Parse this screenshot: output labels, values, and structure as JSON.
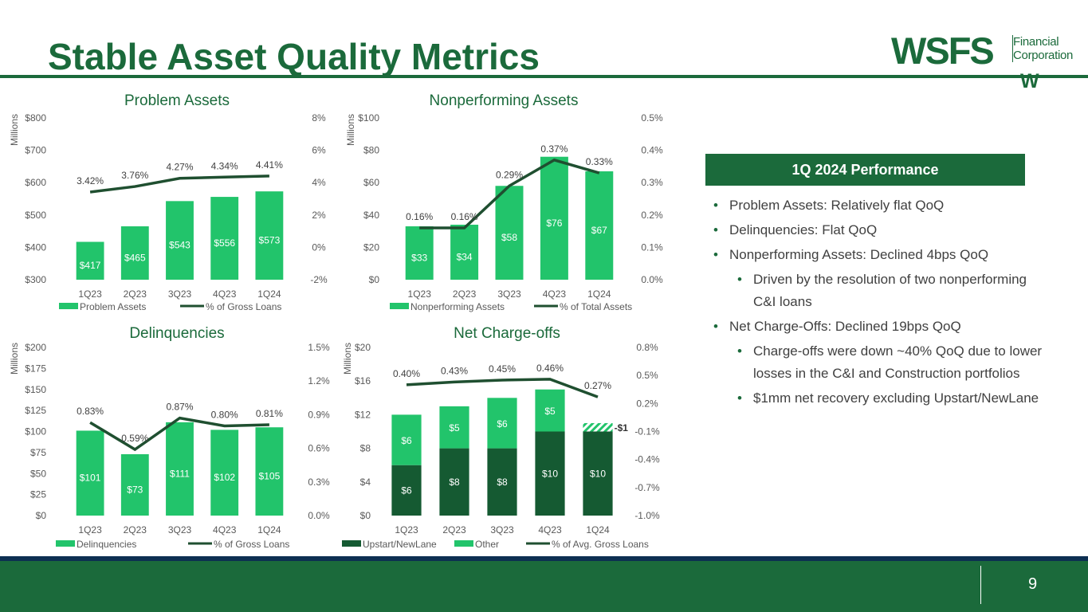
{
  "page": {
    "title": "Stable Asset Quality Metrics",
    "page_number": "9"
  },
  "logo": {
    "main": "WSFS",
    "line1": "Financial",
    "line2": "Corporation",
    "mark": "W"
  },
  "performance": {
    "header": "1Q 2024 Performance",
    "bullets": [
      {
        "text": "Problem Assets: Relatively flat QoQ",
        "level": 1
      },
      {
        "text": "Delinquencies:  Flat QoQ",
        "level": 1
      },
      {
        "text": "Nonperforming Assets: Declined 4bps QoQ",
        "level": 1
      },
      {
        "text": "Driven by the resolution of two nonperforming C&I loans",
        "level": 2
      },
      {
        "text": "Net Charge-Offs: Declined 19bps QoQ",
        "level": 1
      },
      {
        "text": "Charge-offs were down ~40% QoQ due to lower losses in the C&I and Construction portfolios",
        "level": 2
      },
      {
        "text": "$1mm net recovery excluding Upstart/NewLane",
        "level": 2
      }
    ]
  },
  "colors": {
    "brand_green": "#1b6a3b",
    "bar_green": "#22c46b",
    "dark_green": "#155a32",
    "line": "#1f4f30",
    "axis_text": "#595959",
    "footer_blue": "#0d2f52"
  },
  "chart_data": [
    {
      "type": "bar",
      "title": "Problem Assets",
      "ylabel": "Millions",
      "categories": [
        "1Q23",
        "2Q23",
        "3Q23",
        "4Q23",
        "1Q24"
      ],
      "series": [
        {
          "name": "Problem Assets",
          "type": "bar",
          "values": [
            417,
            465,
            543,
            556,
            573
          ],
          "labels": [
            "$417",
            "$465",
            "$543",
            "$556",
            "$573"
          ]
        },
        {
          "name": "% of Gross Loans",
          "type": "line",
          "axis": "right",
          "values": [
            3.42,
            3.76,
            4.27,
            4.34,
            4.41
          ],
          "labels": [
            "3.42%",
            "3.76%",
            "4.27%",
            "4.34%",
            "4.41%"
          ]
        }
      ],
      "ylim": [
        300,
        800
      ],
      "yticks": [
        "$300",
        "$400",
        "$500",
        "$600",
        "$700",
        "$800"
      ],
      "y2lim": [
        -2,
        8
      ],
      "y2ticks": [
        "-2%",
        "0%",
        "2%",
        "4%",
        "6%",
        "8%"
      ],
      "legend": "bottom"
    },
    {
      "type": "bar",
      "title": "Nonperforming  Assets",
      "ylabel": "Millions",
      "categories": [
        "1Q23",
        "2Q23",
        "3Q23",
        "4Q23",
        "1Q24"
      ],
      "series": [
        {
          "name": "Nonperforming Assets",
          "type": "bar",
          "values": [
            33,
            34,
            58,
            76,
            67
          ],
          "labels": [
            "$33",
            "$34",
            "$58",
            "$76",
            "$67"
          ]
        },
        {
          "name": "% of Total Assets",
          "type": "line",
          "axis": "right",
          "values": [
            0.16,
            0.16,
            0.29,
            0.37,
            0.33
          ],
          "labels": [
            "0.16%",
            "0.16%",
            "0.29%",
            "0.37%",
            "0.33%"
          ]
        }
      ],
      "ylim": [
        0,
        100
      ],
      "yticks": [
        "$0",
        "$20",
        "$40",
        "$60",
        "$80",
        "$100"
      ],
      "y2lim": [
        0,
        0.5
      ],
      "y2ticks": [
        "0.0%",
        "0.1%",
        "0.2%",
        "0.3%",
        "0.4%",
        "0.5%"
      ],
      "legend": "bottom"
    },
    {
      "type": "bar",
      "title": "Delinquencies",
      "ylabel": "Millions",
      "categories": [
        "1Q23",
        "2Q23",
        "3Q23",
        "4Q23",
        "1Q24"
      ],
      "series": [
        {
          "name": "Delinquencies",
          "type": "bar",
          "values": [
            101,
            73,
            111,
            102,
            105
          ],
          "labels": [
            "$101",
            "$73",
            "$111",
            "$102",
            "$105"
          ]
        },
        {
          "name": "% of Gross Loans",
          "type": "line",
          "axis": "right",
          "values": [
            0.83,
            0.59,
            0.87,
            0.8,
            0.81
          ],
          "labels": [
            "0.83%",
            "0.59%",
            "0.87%",
            "0.80%",
            "0.81%"
          ]
        }
      ],
      "ylim": [
        0,
        200
      ],
      "yticks": [
        "$0",
        "$25",
        "$50",
        "$75",
        "$100",
        "$125",
        "$150",
        "$175",
        "$200"
      ],
      "y2lim": [
        0,
        1.5
      ],
      "y2ticks": [
        "0.0%",
        "0.3%",
        "0.6%",
        "0.9%",
        "1.2%",
        "1.5%"
      ],
      "legend": "bottom"
    },
    {
      "type": "bar",
      "title": "Net Charge-offs",
      "ylabel": "Millions",
      "categories": [
        "1Q23",
        "2Q23",
        "3Q23",
        "4Q23",
        "1Q24"
      ],
      "series": [
        {
          "name": "Upstart/NewLane",
          "type": "stacked-bar",
          "values": [
            6,
            8,
            8,
            10,
            10
          ],
          "labels": [
            "$6",
            "$8",
            "$8",
            "$10",
            "$10"
          ]
        },
        {
          "name": "Other",
          "type": "stacked-bar",
          "values": [
            6,
            5,
            6,
            5,
            -1
          ],
          "labels": [
            "$6",
            "$5",
            "$6",
            "$5",
            "-$1"
          ]
        },
        {
          "name": "% of Avg. Gross Loans",
          "type": "line",
          "axis": "right",
          "values": [
            0.4,
            0.43,
            0.45,
            0.46,
            0.27
          ],
          "labels": [
            "0.40%",
            "0.43%",
            "0.45%",
            "0.46%",
            "0.27%"
          ]
        }
      ],
      "ylim": [
        0,
        20
      ],
      "yticks": [
        "$0",
        "$4",
        "$8",
        "$12",
        "$16",
        "$20"
      ],
      "y2lim": [
        -1.0,
        0.8
      ],
      "y2ticks": [
        "-1.0%",
        "-0.7%",
        "-0.4%",
        "-0.1%",
        "0.2%",
        "0.5%",
        "0.8%"
      ],
      "legend": "bottom"
    }
  ]
}
